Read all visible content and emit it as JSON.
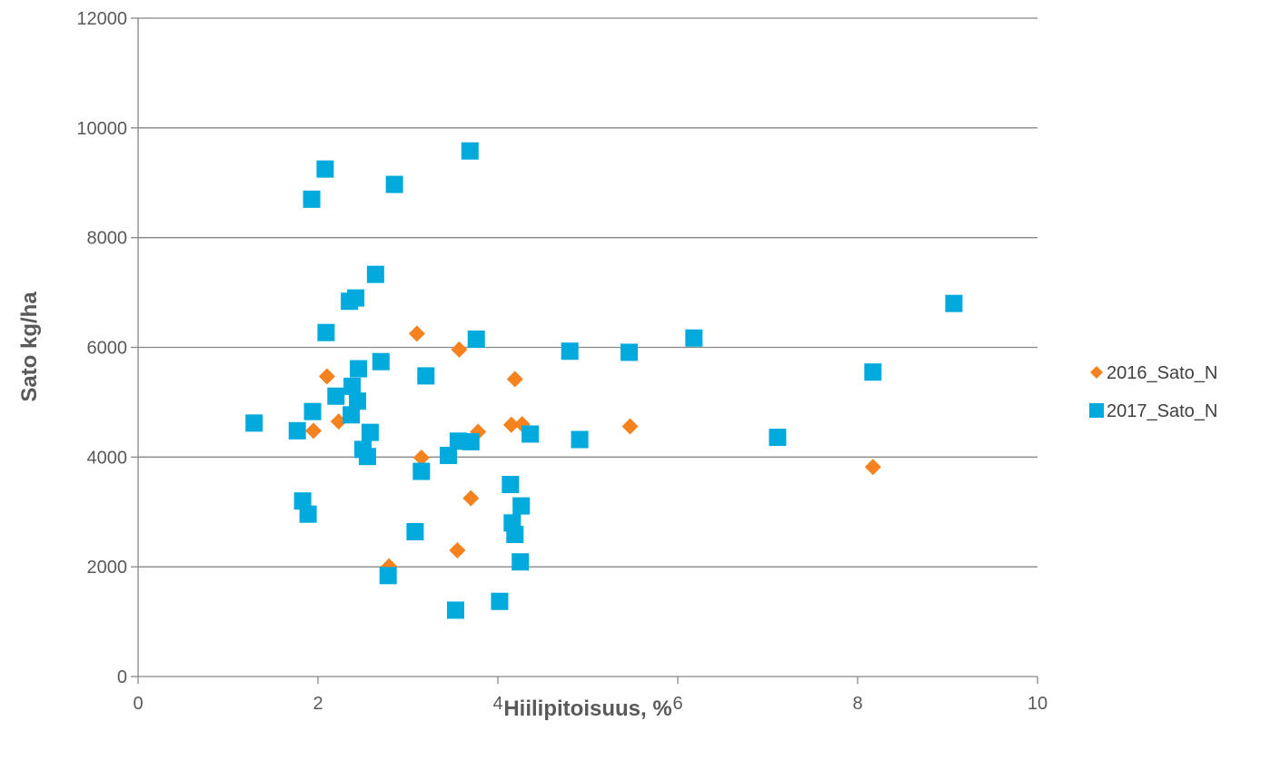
{
  "chart_data": {
    "type": "scatter",
    "title": "",
    "xlabel": "Hiilipitoisuus, %",
    "ylabel": "Sato kg/ha",
    "xlim": [
      0,
      10
    ],
    "ylim": [
      0,
      12000
    ],
    "xticks": [
      0,
      2,
      4,
      6,
      8,
      10
    ],
    "yticks": [
      0,
      2000,
      4000,
      6000,
      8000,
      10000,
      12000
    ],
    "grid": "horizontal",
    "legend_position": "right",
    "series": [
      {
        "name": "2016_Sato_N",
        "marker": "diamond",
        "color": "#f5821f",
        "points": [
          [
            1.95,
            4480
          ],
          [
            2.1,
            5470
          ],
          [
            2.23,
            4650
          ],
          [
            2.79,
            2010
          ],
          [
            3.1,
            6250
          ],
          [
            3.15,
            3990
          ],
          [
            3.55,
            2300
          ],
          [
            3.57,
            5960
          ],
          [
            3.7,
            3250
          ],
          [
            3.78,
            4460
          ],
          [
            4.15,
            4590
          ],
          [
            4.19,
            5420
          ],
          [
            4.27,
            4600
          ],
          [
            5.47,
            4560
          ],
          [
            8.17,
            3820
          ]
        ]
      },
      {
        "name": "2017_Sato_N",
        "marker": "square",
        "color": "#00aadd",
        "points": [
          [
            1.29,
            4620
          ],
          [
            1.77,
            4480
          ],
          [
            1.83,
            3200
          ],
          [
            1.89,
            2960
          ],
          [
            1.93,
            8700
          ],
          [
            1.94,
            4830
          ],
          [
            2.08,
            9250
          ],
          [
            2.09,
            6270
          ],
          [
            2.2,
            5110
          ],
          [
            2.35,
            6840
          ],
          [
            2.37,
            4770
          ],
          [
            2.38,
            5290
          ],
          [
            2.42,
            6900
          ],
          [
            2.44,
            5020
          ],
          [
            2.45,
            5610
          ],
          [
            2.5,
            4140
          ],
          [
            2.55,
            4010
          ],
          [
            2.58,
            4450
          ],
          [
            2.64,
            7330
          ],
          [
            2.7,
            5740
          ],
          [
            2.78,
            1840
          ],
          [
            2.85,
            8970
          ],
          [
            3.08,
            2640
          ],
          [
            3.15,
            3740
          ],
          [
            3.2,
            5480
          ],
          [
            3.45,
            4030
          ],
          [
            3.53,
            1210
          ],
          [
            3.56,
            4290
          ],
          [
            3.69,
            9580
          ],
          [
            3.7,
            4280
          ],
          [
            3.76,
            6150
          ],
          [
            4.02,
            1370
          ],
          [
            4.14,
            3500
          ],
          [
            4.16,
            2800
          ],
          [
            4.19,
            2590
          ],
          [
            4.25,
            2090
          ],
          [
            4.26,
            3110
          ],
          [
            4.36,
            4420
          ],
          [
            4.8,
            5930
          ],
          [
            4.91,
            4320
          ],
          [
            5.46,
            5910
          ],
          [
            6.18,
            6170
          ],
          [
            7.11,
            4360
          ],
          [
            8.17,
            5550
          ],
          [
            9.07,
            6800
          ]
        ]
      }
    ]
  }
}
